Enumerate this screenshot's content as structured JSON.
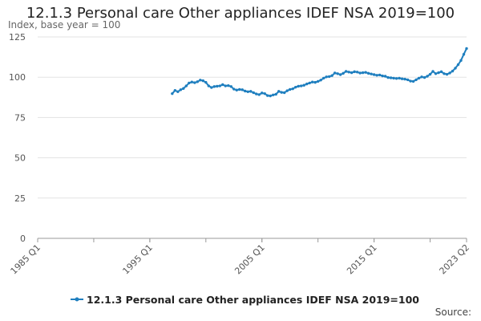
{
  "chart_title": "12.1.3 Personal care Other appliances IDEF NSA 2019=100",
  "chart_subtitle": "Index, base year = 100",
  "source_label": "Source:",
  "colors": {
    "series": "#1f7fbf",
    "grid": "#e3e3e3",
    "axis": "#999999",
    "tick_text": "#555555"
  },
  "chart_data": {
    "type": "line",
    "title": "12.1.3 Personal care Other appliances IDEF NSA 2019=100",
    "subtitle": "Index, base year = 100",
    "ylim": [
      0,
      125
    ],
    "yticks": [
      0,
      25,
      50,
      75,
      100,
      125
    ],
    "x_range": [
      "1985 Q1",
      "2023 Q2"
    ],
    "xticks": [
      "1985 Q1",
      "1995 Q1",
      "2005 Q1",
      "2015 Q1",
      "2023 Q2"
    ],
    "grid": "horizontal",
    "legend_position": "bottom",
    "series": [
      {
        "name": "12.1.3 Personal care Other appliances IDEF NSA 2019=100",
        "marker": "circle",
        "points": [
          [
            "1997 Q1",
            89.8
          ],
          [
            "1997 Q2",
            91.8
          ],
          [
            "1997 Q3",
            91.0
          ],
          [
            "1997 Q4",
            92.2
          ],
          [
            "1998 Q1",
            93.0
          ],
          [
            "1998 Q2",
            94.6
          ],
          [
            "1998 Q3",
            96.4
          ],
          [
            "1998 Q4",
            97.0
          ],
          [
            "1999 Q1",
            96.6
          ],
          [
            "1999 Q2",
            97.2
          ],
          [
            "1999 Q3",
            98.2
          ],
          [
            "1999 Q4",
            97.8
          ],
          [
            "2000 Q1",
            96.8
          ],
          [
            "2000 Q2",
            94.6
          ],
          [
            "2000 Q3",
            93.6
          ],
          [
            "2000 Q4",
            94.2
          ],
          [
            "2001 Q1",
            94.4
          ],
          [
            "2001 Q2",
            94.6
          ],
          [
            "2001 Q3",
            95.4
          ],
          [
            "2001 Q4",
            94.6
          ],
          [
            "2002 Q1",
            94.8
          ],
          [
            "2002 Q2",
            94.2
          ],
          [
            "2002 Q3",
            92.6
          ],
          [
            "2002 Q4",
            92.0
          ],
          [
            "2003 Q1",
            92.4
          ],
          [
            "2003 Q2",
            92.2
          ],
          [
            "2003 Q3",
            91.4
          ],
          [
            "2003 Q4",
            91.0
          ],
          [
            "2004 Q1",
            91.2
          ],
          [
            "2004 Q2",
            90.4
          ],
          [
            "2004 Q3",
            89.6
          ],
          [
            "2004 Q4",
            89.2
          ],
          [
            "2005 Q1",
            90.2
          ],
          [
            "2005 Q2",
            89.8
          ],
          [
            "2005 Q3",
            88.6
          ],
          [
            "2005 Q4",
            88.4
          ],
          [
            "2006 Q1",
            89.0
          ],
          [
            "2006 Q2",
            89.4
          ],
          [
            "2006 Q3",
            91.2
          ],
          [
            "2006 Q4",
            90.6
          ],
          [
            "2007 Q1",
            90.4
          ],
          [
            "2007 Q2",
            91.6
          ],
          [
            "2007 Q3",
            92.4
          ],
          [
            "2007 Q4",
            92.8
          ],
          [
            "2008 Q1",
            93.8
          ],
          [
            "2008 Q2",
            94.4
          ],
          [
            "2008 Q3",
            94.6
          ],
          [
            "2008 Q4",
            95.0
          ],
          [
            "2009 Q1",
            95.8
          ],
          [
            "2009 Q2",
            96.4
          ],
          [
            "2009 Q3",
            97.0
          ],
          [
            "2009 Q4",
            96.8
          ],
          [
            "2010 Q1",
            97.4
          ],
          [
            "2010 Q2",
            98.2
          ],
          [
            "2010 Q3",
            99.4
          ],
          [
            "2010 Q4",
            100.2
          ],
          [
            "2011 Q1",
            100.4
          ],
          [
            "2011 Q2",
            101.0
          ],
          [
            "2011 Q3",
            102.6
          ],
          [
            "2011 Q4",
            102.2
          ],
          [
            "2012 Q1",
            101.6
          ],
          [
            "2012 Q2",
            102.4
          ],
          [
            "2012 Q3",
            103.6
          ],
          [
            "2012 Q4",
            103.2
          ],
          [
            "2013 Q1",
            102.8
          ],
          [
            "2013 Q2",
            103.4
          ],
          [
            "2013 Q3",
            103.2
          ],
          [
            "2013 Q4",
            102.6
          ],
          [
            "2014 Q1",
            102.8
          ],
          [
            "2014 Q2",
            103.0
          ],
          [
            "2014 Q3",
            102.4
          ],
          [
            "2014 Q4",
            102.0
          ],
          [
            "2015 Q1",
            101.6
          ],
          [
            "2015 Q2",
            101.2
          ],
          [
            "2015 Q3",
            101.4
          ],
          [
            "2015 Q4",
            100.8
          ],
          [
            "2016 Q1",
            100.6
          ],
          [
            "2016 Q2",
            99.8
          ],
          [
            "2016 Q3",
            99.6
          ],
          [
            "2016 Q4",
            99.4
          ],
          [
            "2017 Q1",
            99.2
          ],
          [
            "2017 Q2",
            99.4
          ],
          [
            "2017 Q3",
            99.0
          ],
          [
            "2017 Q4",
            98.8
          ],
          [
            "2018 Q1",
            98.4
          ],
          [
            "2018 Q2",
            97.6
          ],
          [
            "2018 Q3",
            97.4
          ],
          [
            "2018 Q4",
            98.4
          ],
          [
            "2019 Q1",
            99.4
          ],
          [
            "2019 Q2",
            100.2
          ],
          [
            "2019 Q3",
            99.8
          ],
          [
            "2019 Q4",
            100.6
          ],
          [
            "2020 Q1",
            101.8
          ],
          [
            "2020 Q2",
            103.6
          ],
          [
            "2020 Q3",
            102.2
          ],
          [
            "2020 Q4",
            102.8
          ],
          [
            "2021 Q1",
            103.4
          ],
          [
            "2021 Q2",
            102.2
          ],
          [
            "2021 Q3",
            101.8
          ],
          [
            "2021 Q4",
            102.6
          ],
          [
            "2022 Q1",
            103.8
          ],
          [
            "2022 Q2",
            105.6
          ],
          [
            "2022 Q3",
            107.8
          ],
          [
            "2022 Q4",
            110.4
          ],
          [
            "2023 Q1",
            114.2
          ],
          [
            "2023 Q2",
            117.8
          ]
        ]
      }
    ]
  }
}
